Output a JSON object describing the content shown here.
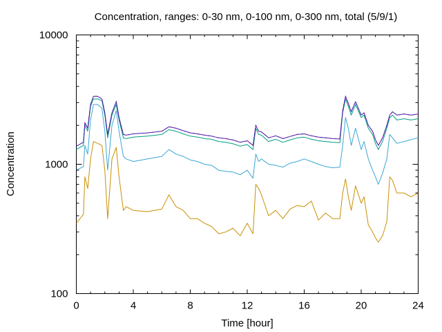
{
  "chart_data": {
    "type": "line",
    "title": "Concentration, ranges: 0-30 nm, 0-100 nm, 0-300 nm, total (5/9/1)",
    "xlabel": "Time [hour]",
    "ylabel": "Concentration",
    "xlim": [
      0,
      24
    ],
    "ylim": [
      100,
      10000
    ],
    "yscale": "log",
    "xticks": [
      0,
      4,
      8,
      12,
      16,
      20,
      24
    ],
    "yticks": [
      100,
      1000,
      10000
    ],
    "xtick_labels": [
      "0",
      "4",
      "8",
      "12",
      "16",
      "20",
      "24"
    ],
    "ytick_labels": [
      "100",
      "1000",
      "10000"
    ],
    "grid": false,
    "legend": "none",
    "colors": {
      "series1": "#c89000",
      "series2": "#3aa6d4",
      "series3": "#009c80",
      "series4": "#9000b0",
      "series4_dash": "#2040a0"
    },
    "x": [
      0,
      0.5,
      0.6,
      0.8,
      1.0,
      1.2,
      1.5,
      1.8,
      2.0,
      2.2,
      2.5,
      2.8,
      3.0,
      3.3,
      3.5,
      4,
      5,
      6,
      6.5,
      7,
      7.5,
      8,
      8.5,
      9,
      9.5,
      10,
      10.5,
      11,
      11.5,
      12,
      12.4,
      12.6,
      12.8,
      13,
      13.5,
      14,
      14.5,
      15,
      15.5,
      16,
      16.5,
      17,
      17.5,
      18,
      18.5,
      18.7,
      18.9,
      19.1,
      19.3,
      19.6,
      20,
      20.2,
      20.5,
      20.8,
      21,
      21.2,
      21.5,
      21.8,
      22,
      22.2,
      22.5,
      23,
      23.5,
      24
    ],
    "series": [
      {
        "values": [
          350,
          410,
          800,
          650,
          1100,
          1500,
          1450,
          1400,
          900,
          380,
          1100,
          1350,
          800,
          440,
          470,
          440,
          430,
          450,
          580,
          470,
          440,
          380,
          380,
          350,
          330,
          290,
          300,
          320,
          280,
          350,
          290,
          700,
          650,
          580,
          400,
          440,
          380,
          450,
          480,
          470,
          520,
          370,
          420,
          380,
          380,
          600,
          770,
          560,
          440,
          680,
          500,
          560,
          340,
          300,
          270,
          250,
          280,
          360,
          800,
          750,
          600,
          600,
          560,
          600
        ]
      },
      {
        "values": [
          900,
          960,
          1400,
          1200,
          2200,
          2900,
          2900,
          2700,
          1800,
          900,
          2000,
          2600,
          1800,
          1150,
          1100,
          1050,
          1100,
          1150,
          1300,
          1200,
          1150,
          1080,
          1050,
          1000,
          980,
          900,
          880,
          870,
          830,
          900,
          780,
          1200,
          1050,
          1100,
          1000,
          980,
          950,
          1020,
          1050,
          1100,
          1050,
          1000,
          960,
          940,
          950,
          1400,
          2300,
          1900,
          1400,
          1900,
          1300,
          1500,
          1100,
          900,
          800,
          700,
          850,
          1100,
          1700,
          1600,
          1450,
          1500,
          1550,
          1600
        ]
      },
      {
        "values": [
          1300,
          1400,
          2000,
          1800,
          2800,
          3200,
          3200,
          3100,
          2400,
          1600,
          2400,
          2900,
          2200,
          1600,
          1580,
          1620,
          1650,
          1700,
          1850,
          1800,
          1720,
          1650,
          1620,
          1580,
          1560,
          1500,
          1480,
          1440,
          1380,
          1420,
          1300,
          1900,
          1700,
          1680,
          1500,
          1560,
          1480,
          1540,
          1600,
          1620,
          1560,
          1520,
          1500,
          1480,
          1470,
          2500,
          3200,
          2800,
          2400,
          2900,
          2300,
          2400,
          1900,
          1700,
          1450,
          1300,
          1500,
          1900,
          2300,
          2400,
          2200,
          2250,
          2200,
          2250
        ]
      },
      {
        "values": [
          1380,
          1480,
          2100,
          1900,
          2900,
          3350,
          3350,
          3200,
          2500,
          1700,
          2500,
          3050,
          2300,
          1700,
          1680,
          1720,
          1750,
          1800,
          1950,
          1900,
          1820,
          1750,
          1720,
          1680,
          1650,
          1600,
          1580,
          1540,
          1480,
          1520,
          1400,
          2000,
          1800,
          1780,
          1600,
          1660,
          1580,
          1640,
          1700,
          1720,
          1660,
          1620,
          1600,
          1580,
          1570,
          2600,
          3350,
          2950,
          2550,
          3050,
          2400,
          2500,
          2000,
          1800,
          1550,
          1400,
          1600,
          2000,
          2400,
          2550,
          2400,
          2450,
          2400,
          2450
        ]
      }
    ]
  }
}
